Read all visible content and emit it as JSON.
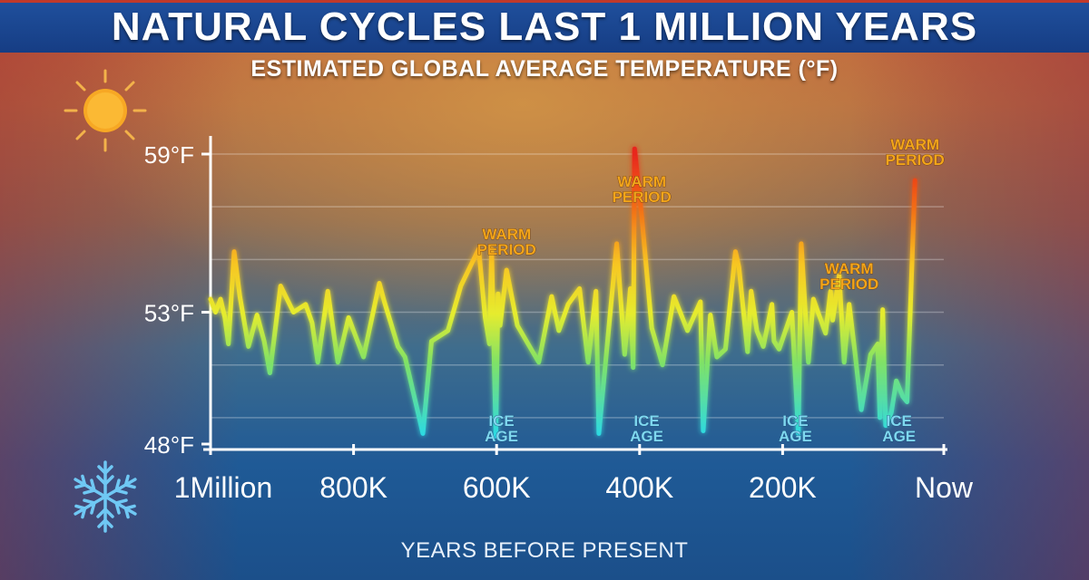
{
  "chart_data": {
    "type": "line",
    "title": "NATURAL CYCLES LAST 1 MILLION YEARS",
    "subtitle": "ESTIMATED GLOBAL AVERAGE TEMPERATURE (°F)",
    "xlabel": "YEARS BEFORE PRESENT",
    "ylabel": "",
    "x_tick_labels": [
      "1Million",
      "800K",
      "600K",
      "400K",
      "200K",
      "Now"
    ],
    "x_ticks": [
      1000,
      800,
      600,
      400,
      200,
      0
    ],
    "y_tick_labels": [
      "59°F",
      "53°F",
      "48°F"
    ],
    "y_ticks": [
      59,
      53,
      48
    ],
    "xlim": [
      1000,
      0
    ],
    "ylim": [
      48,
      59
    ],
    "grid": true,
    "series": [
      {
        "x": [
          1000,
          993,
          986,
          980,
          975,
          967,
          959,
          947,
          935,
          925,
          917,
          902,
          884,
          867,
          858,
          850,
          836,
          822,
          807,
          786,
          764,
          757,
          738,
          728,
          703,
          691,
          668,
          650,
          625,
          616,
          610,
          607,
          601,
          598,
          595,
          586,
          571,
          541,
          523,
          513,
          500,
          484,
          475,
          472,
          461,
          457,
          432,
          421,
          413,
          409,
          407,
          397,
          383,
          368,
          352,
          333,
          315,
          311,
          301,
          292,
          280,
          266,
          261,
          249,
          244,
          236,
          227,
          215,
          212,
          205,
          187,
          178,
          174,
          164,
          157,
          140,
          133,
          130,
          121,
          114,
          107,
          99,
          90,
          77,
          67,
          64,
          60,
          56,
          48,
          41,
          32,
          26,
          15
        ],
        "y": [
          53.5,
          53.0,
          53.5,
          52.8,
          51.8,
          55.3,
          53.6,
          51.7,
          52.9,
          51.9,
          50.7,
          54.0,
          53.0,
          53.3,
          52.6,
          51.1,
          53.8,
          51.1,
          52.8,
          51.3,
          54.1,
          53.4,
          51.7,
          51.3,
          48.4,
          51.9,
          52.3,
          54.0,
          55.4,
          52.8,
          51.8,
          55.4,
          48.3,
          53.7,
          52.5,
          54.6,
          52.5,
          51.1,
          53.6,
          52.3,
          53.3,
          53.9,
          51.8,
          51.1,
          53.8,
          48.4,
          55.6,
          51.4,
          53.9,
          50.9,
          59.2,
          56.6,
          52.4,
          51.0,
          53.6,
          52.3,
          53.4,
          48.5,
          52.9,
          51.3,
          51.6,
          55.3,
          54.7,
          51.5,
          53.8,
          52.3,
          51.7,
          53.3,
          51.9,
          51.6,
          53.0,
          48.4,
          55.6,
          51.1,
          53.5,
          52.2,
          53.8,
          52.7,
          54.4,
          51.1,
          53.3,
          51.5,
          49.3,
          51.4,
          51.8,
          49.0,
          53.1,
          48.7,
          49.2,
          50.4,
          49.8,
          49.6,
          58.0
        ]
      }
    ],
    "annotations": [
      {
        "text": "WARM PERIOD",
        "at_k": 590,
        "type": "warm"
      },
      {
        "text": "WARM PERIOD",
        "at_k": 397,
        "type": "warm"
      },
      {
        "text": "WARM PERIOD",
        "at_k": 107,
        "type": "warm"
      },
      {
        "text": "WARM PERIOD",
        "at_k": 15,
        "type": "warm"
      },
      {
        "text": "ICE AGE",
        "at_k": 615,
        "type": "ice"
      },
      {
        "text": "ICE AGE",
        "at_k": 412,
        "type": "ice"
      },
      {
        "text": "ICE AGE",
        "at_k": 199,
        "type": "ice"
      },
      {
        "text": "ICE AGE",
        "at_k": 60,
        "type": "ice"
      }
    ],
    "colors": {
      "warm_label": "#f2a51a",
      "ice_label": "#7fd8ef",
      "line_hot": "#e8261c",
      "line_warm": "#f5e52a",
      "line_cool": "#28d9f0",
      "axis": "#ffffff",
      "grid": "rgba(255,255,255,0.28)"
    }
  },
  "icons": {
    "sun": "sun-icon",
    "snowflake": "snowflake-icon"
  }
}
